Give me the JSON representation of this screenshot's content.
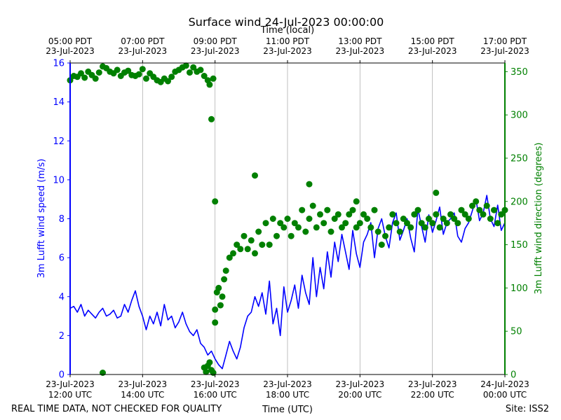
{
  "title": "Surface wind 24-Jul-2023 00:00:00",
  "top_axis": {
    "label": "Time (local)",
    "ticks": [
      {
        "hour": 0,
        "line1": "05:00 PDT",
        "line2": "23-Jul-2023"
      },
      {
        "hour": 2,
        "line1": "07:00 PDT",
        "line2": "23-Jul-2023"
      },
      {
        "hour": 4,
        "line1": "09:00 PDT",
        "line2": "23-Jul-2023"
      },
      {
        "hour": 6,
        "line1": "11:00 PDT",
        "line2": "23-Jul-2023"
      },
      {
        "hour": 8,
        "line1": "13:00 PDT",
        "line2": "23-Jul-2023"
      },
      {
        "hour": 10,
        "line1": "15:00 PDT",
        "line2": "23-Jul-2023"
      },
      {
        "hour": 12,
        "line1": "17:00 PDT",
        "line2": "23-Jul-2023"
      }
    ]
  },
  "footer": {
    "left": "REAL TIME DATA, NOT CHECKED FOR QUALITY",
    "right": "Site: ISS2"
  },
  "colors": {
    "speed": "#0000ff",
    "direction": "#008000",
    "grid": "#b0b0b0",
    "axis": "#000000"
  },
  "chart_data": {
    "type": "line+scatter",
    "title": "Surface wind 24-Jul-2023 00:00:00",
    "xlabel": "Time (UTC)",
    "x_units": "hours since 23-Jul-2023 12:00 UTC",
    "xlim": [
      0,
      12
    ],
    "x_ticks": [
      {
        "hour": 0,
        "line1": "23-Jul-2023",
        "line2": "12:00 UTC"
      },
      {
        "hour": 2,
        "line1": "23-Jul-2023",
        "line2": "14:00 UTC"
      },
      {
        "hour": 4,
        "line1": "23-Jul-2023",
        "line2": "16:00 UTC"
      },
      {
        "hour": 6,
        "line1": "23-Jul-2023",
        "line2": "18:00 UTC"
      },
      {
        "hour": 8,
        "line1": "23-Jul-2023",
        "line2": "20:00 UTC"
      },
      {
        "hour": 10,
        "line1": "23-Jul-2023",
        "line2": "22:00 UTC"
      },
      {
        "hour": 12,
        "line1": "24-Jul-2023",
        "line2": "00:00 UTC"
      }
    ],
    "grid": "vertical",
    "left_axis": {
      "label": "3m Lufft wind speed (m/s)",
      "ylim": [
        0,
        16
      ],
      "ticks": [
        0,
        2,
        4,
        6,
        8,
        10,
        12,
        14,
        16
      ]
    },
    "right_axis": {
      "label": "3m Lufft wind direction (degrees)",
      "ylim": [
        0,
        360
      ],
      "ticks": [
        0,
        50,
        100,
        150,
        200,
        250,
        300,
        350
      ]
    },
    "series": [
      {
        "name": "3m Lufft wind speed (m/s)",
        "axis": "left",
        "kind": "line",
        "x": [
          0,
          0.1,
          0.2,
          0.3,
          0.4,
          0.5,
          0.6,
          0.7,
          0.8,
          0.9,
          1.0,
          1.1,
          1.2,
          1.3,
          1.4,
          1.5,
          1.6,
          1.7,
          1.8,
          1.9,
          2.0,
          2.1,
          2.2,
          2.3,
          2.4,
          2.5,
          2.6,
          2.7,
          2.8,
          2.9,
          3.0,
          3.1,
          3.2,
          3.3,
          3.4,
          3.5,
          3.6,
          3.7,
          3.8,
          3.9,
          4.0,
          4.1,
          4.2,
          4.3,
          4.4,
          4.5,
          4.6,
          4.7,
          4.8,
          4.9,
          5.0,
          5.1,
          5.2,
          5.3,
          5.4,
          5.5,
          5.6,
          5.7,
          5.8,
          5.9,
          6.0,
          6.1,
          6.2,
          6.3,
          6.4,
          6.5,
          6.6,
          6.7,
          6.8,
          6.9,
          7.0,
          7.1,
          7.2,
          7.3,
          7.4,
          7.5,
          7.6,
          7.7,
          7.8,
          7.9,
          8.0,
          8.1,
          8.2,
          8.3,
          8.4,
          8.5,
          8.6,
          8.7,
          8.8,
          8.9,
          9.0,
          9.1,
          9.2,
          9.3,
          9.4,
          9.5,
          9.6,
          9.7,
          9.8,
          9.9,
          10.0,
          10.1,
          10.2,
          10.3,
          10.4,
          10.5,
          10.6,
          10.7,
          10.8,
          10.9,
          11.0,
          11.1,
          11.2,
          11.3,
          11.4,
          11.5,
          11.6,
          11.7,
          11.8,
          11.9,
          12.0
        ],
        "y": [
          3.4,
          3.5,
          3.2,
          3.6,
          3.0,
          3.3,
          3.1,
          2.9,
          3.2,
          3.4,
          3.0,
          3.1,
          3.3,
          2.9,
          3.0,
          3.6,
          3.2,
          3.8,
          4.3,
          3.5,
          3.0,
          2.3,
          3.0,
          2.6,
          3.2,
          2.5,
          3.6,
          2.8,
          3.0,
          2.4,
          2.7,
          3.2,
          2.6,
          2.2,
          2.0,
          2.3,
          1.6,
          1.4,
          1.0,
          1.2,
          0.8,
          0.5,
          0.3,
          1.0,
          1.7,
          1.2,
          0.8,
          1.4,
          2.4,
          3.0,
          3.2,
          4.0,
          3.5,
          4.2,
          3.1,
          4.8,
          2.6,
          3.4,
          2.0,
          4.5,
          3.2,
          3.8,
          4.6,
          3.4,
          5.1,
          4.2,
          3.6,
          6.0,
          4.0,
          5.5,
          4.4,
          6.3,
          5.0,
          6.8,
          5.8,
          7.2,
          6.3,
          5.4,
          7.4,
          6.2,
          5.5,
          6.8,
          7.2,
          7.8,
          6.0,
          7.5,
          8.0,
          7.1,
          6.5,
          7.8,
          8.3,
          6.9,
          7.4,
          8.0,
          7.0,
          6.3,
          8.5,
          7.6,
          6.8,
          8.2,
          7.3,
          7.9,
          8.6,
          7.2,
          7.8,
          8.0,
          8.3,
          7.1,
          6.8,
          7.5,
          7.8,
          8.4,
          9.0,
          7.9,
          8.3,
          9.2,
          8.0,
          7.6,
          8.7,
          7.4,
          7.8
        ]
      },
      {
        "name": "3m Lufft wind direction (degrees)",
        "axis": "right",
        "kind": "scatter",
        "x": [
          0.0,
          0.1,
          0.2,
          0.3,
          0.4,
          0.5,
          0.6,
          0.7,
          0.8,
          0.9,
          1.0,
          1.1,
          1.2,
          1.3,
          1.4,
          1.5,
          1.6,
          1.7,
          1.8,
          1.9,
          2.0,
          2.1,
          2.2,
          2.3,
          2.4,
          2.5,
          2.6,
          2.7,
          2.8,
          2.9,
          3.0,
          3.1,
          3.2,
          3.3,
          3.4,
          3.5,
          3.6,
          3.7,
          3.8,
          3.85,
          3.9,
          3.95,
          0.9,
          3.7,
          3.75,
          3.8,
          3.85,
          3.9,
          3.95,
          4.0,
          4.0,
          4.0,
          4.05,
          4.1,
          4.15,
          4.2,
          4.25,
          4.3,
          4.4,
          4.5,
          4.6,
          4.7,
          4.8,
          4.9,
          5.0,
          5.1,
          5.2,
          5.3,
          5.4,
          5.5,
          5.6,
          5.7,
          5.8,
          5.9,
          6.0,
          6.1,
          6.2,
          6.3,
          6.4,
          6.5,
          6.6,
          6.7,
          6.8,
          6.9,
          7.0,
          7.1,
          7.2,
          7.3,
          7.4,
          7.5,
          7.6,
          7.7,
          7.8,
          7.9,
          8.0,
          8.1,
          8.2,
          8.3,
          8.4,
          8.5,
          8.6,
          8.7,
          8.8,
          8.9,
          9.0,
          9.1,
          9.2,
          9.3,
          9.4,
          9.5,
          9.6,
          9.7,
          9.8,
          9.9,
          10.0,
          10.1,
          10.2,
          10.3,
          10.4,
          10.5,
          10.6,
          10.7,
          10.8,
          10.9,
          11.0,
          11.1,
          11.2,
          11.3,
          11.4,
          11.5,
          11.6,
          11.7,
          11.8,
          11.9,
          12.0,
          5.1,
          6.6,
          7.9,
          10.1
        ],
        "y": [
          340,
          345,
          344,
          348,
          343,
          350,
          346,
          342,
          349,
          356,
          354,
          350,
          348,
          352,
          345,
          349,
          351,
          346,
          345,
          347,
          353,
          342,
          348,
          344,
          340,
          338,
          342,
          339,
          344,
          350,
          352,
          355,
          357,
          349,
          355,
          350,
          352,
          345,
          340,
          335,
          295,
          342,
          2,
          8,
          3,
          10,
          14,
          5,
          2,
          60,
          200,
          75,
          95,
          100,
          80,
          90,
          110,
          120,
          135,
          140,
          150,
          145,
          160,
          145,
          155,
          140,
          165,
          150,
          175,
          150,
          180,
          160,
          175,
          170,
          180,
          160,
          175,
          170,
          190,
          165,
          180,
          195,
          170,
          185,
          175,
          190,
          165,
          180,
          185,
          170,
          175,
          185,
          190,
          170,
          175,
          185,
          180,
          170,
          190,
          165,
          150,
          160,
          170,
          185,
          175,
          165,
          180,
          175,
          170,
          185,
          190,
          175,
          170,
          180,
          175,
          185,
          170,
          180,
          175,
          185,
          180,
          175,
          190,
          185,
          180,
          195,
          200,
          190,
          185,
          195,
          180,
          190,
          175,
          185,
          190,
          230,
          220,
          200,
          210
        ]
      }
    ]
  }
}
